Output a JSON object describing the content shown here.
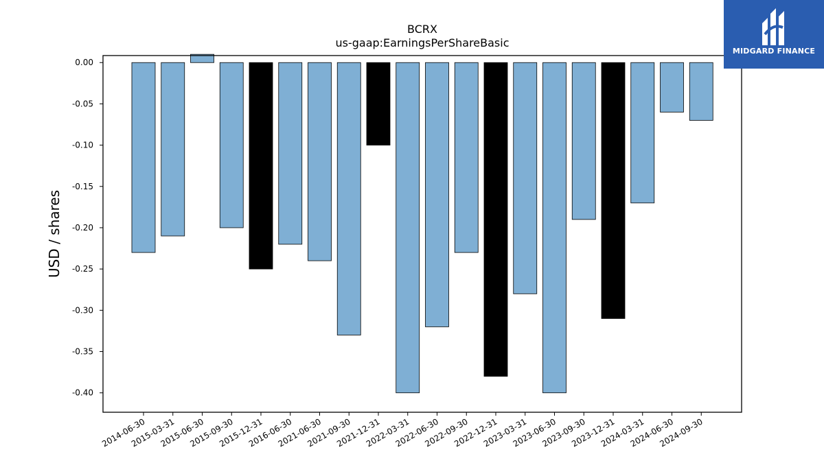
{
  "logo": {
    "text": "MIDGARD FINANCE",
    "color": "#2a5db0"
  },
  "chart_data": {
    "type": "bar",
    "title": "BCRX",
    "subtitle": "us-gaap:EarningsPerShareBasic",
    "xlabel": "",
    "ylabel": "USD / shares",
    "ylim": [
      -0.4235,
      0.0085
    ],
    "yticks": [
      0.0,
      -0.05,
      -0.1,
      -0.15,
      -0.2,
      -0.25,
      -0.3,
      -0.35,
      -0.4
    ],
    "grid": false,
    "colors": {
      "quarterly": "#7fafd4",
      "annual": "#000000",
      "edge": "#000000"
    },
    "categories": [
      "2014-06-30",
      "2015-03-31",
      "2015-06-30",
      "2015-09-30",
      "2015-12-31",
      "2016-06-30",
      "2021-06-30",
      "2021-09-30",
      "2021-12-31",
      "2022-03-31",
      "2022-06-30",
      "2022-09-30",
      "2022-12-31",
      "2023-03-31",
      "2023-06-30",
      "2023-09-30",
      "2023-12-31",
      "2024-03-31",
      "2024-06-30",
      "2024-09-30"
    ],
    "values": [
      -0.23,
      -0.21,
      0.01,
      -0.2,
      -0.25,
      -0.22,
      -0.24,
      -0.33,
      -0.1,
      -0.4,
      -0.32,
      -0.23,
      -0.38,
      -0.28,
      -0.4,
      -0.19,
      -0.31,
      -0.17,
      -0.06,
      -0.07
    ],
    "highlight": [
      false,
      false,
      false,
      false,
      true,
      false,
      false,
      false,
      true,
      false,
      false,
      false,
      true,
      false,
      false,
      false,
      true,
      false,
      false,
      false
    ]
  }
}
